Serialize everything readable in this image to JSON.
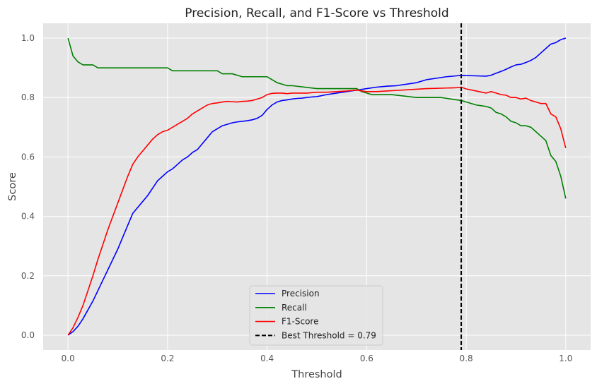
{
  "chart_data": {
    "type": "line",
    "title": "Precision, Recall, and F1-Score vs Threshold",
    "xlabel": "Threshold",
    "ylabel": "Score",
    "xlim": [
      -0.05,
      1.05
    ],
    "ylim": [
      -0.05,
      1.05
    ],
    "xticks": [
      0.0,
      0.2,
      0.4,
      0.6,
      0.8,
      1.0
    ],
    "xtick_labels": [
      "0.0",
      "0.2",
      "0.4",
      "0.6",
      "0.8",
      "1.0"
    ],
    "yticks": [
      0.0,
      0.2,
      0.4,
      0.6,
      0.8,
      1.0
    ],
    "ytick_labels": [
      "0.0",
      "0.2",
      "0.4",
      "0.6",
      "0.8",
      "1.0"
    ],
    "grid": true,
    "legend_position": "lower-center",
    "background": "#e5e5e5",
    "series": [
      {
        "name": "Precision",
        "color": "#0000ff",
        "x": [
          0.0,
          0.01,
          0.02,
          0.03,
          0.04,
          0.05,
          0.06,
          0.07,
          0.08,
          0.09,
          0.1,
          0.11,
          0.12,
          0.13,
          0.14,
          0.15,
          0.16,
          0.17,
          0.18,
          0.19,
          0.2,
          0.21,
          0.22,
          0.23,
          0.24,
          0.25,
          0.26,
          0.27,
          0.28,
          0.29,
          0.3,
          0.31,
          0.32,
          0.33,
          0.34,
          0.35,
          0.36,
          0.37,
          0.38,
          0.39,
          0.4,
          0.41,
          0.42,
          0.43,
          0.44,
          0.45,
          0.46,
          0.47,
          0.48,
          0.49,
          0.5,
          0.52,
          0.54,
          0.56,
          0.58,
          0.6,
          0.62,
          0.64,
          0.66,
          0.68,
          0.7,
          0.72,
          0.74,
          0.76,
          0.78,
          0.79,
          0.8,
          0.82,
          0.84,
          0.85,
          0.86,
          0.87,
          0.88,
          0.89,
          0.9,
          0.91,
          0.92,
          0.93,
          0.94,
          0.95,
          0.96,
          0.97,
          0.98,
          0.99,
          1.0
        ],
        "y": [
          0.0,
          0.012,
          0.03,
          0.055,
          0.085,
          0.115,
          0.15,
          0.185,
          0.22,
          0.255,
          0.29,
          0.33,
          0.37,
          0.41,
          0.43,
          0.45,
          0.47,
          0.495,
          0.52,
          0.535,
          0.55,
          0.56,
          0.575,
          0.59,
          0.6,
          0.615,
          0.625,
          0.645,
          0.665,
          0.685,
          0.695,
          0.705,
          0.71,
          0.715,
          0.718,
          0.72,
          0.722,
          0.725,
          0.73,
          0.74,
          0.76,
          0.775,
          0.785,
          0.79,
          0.792,
          0.795,
          0.797,
          0.798,
          0.8,
          0.802,
          0.803,
          0.81,
          0.815,
          0.82,
          0.825,
          0.83,
          0.835,
          0.838,
          0.84,
          0.845,
          0.85,
          0.86,
          0.865,
          0.87,
          0.873,
          0.875,
          0.874,
          0.873,
          0.872,
          0.875,
          0.882,
          0.888,
          0.895,
          0.903,
          0.91,
          0.912,
          0.918,
          0.925,
          0.935,
          0.95,
          0.965,
          0.98,
          0.985,
          0.995,
          1.0
        ]
      },
      {
        "name": "Recall",
        "color": "#008000",
        "x": [
          0.0,
          0.01,
          0.02,
          0.03,
          0.04,
          0.05,
          0.06,
          0.07,
          0.1,
          0.15,
          0.2,
          0.21,
          0.25,
          0.3,
          0.31,
          0.33,
          0.34,
          0.35,
          0.4,
          0.41,
          0.42,
          0.43,
          0.44,
          0.45,
          0.5,
          0.55,
          0.58,
          0.59,
          0.6,
          0.61,
          0.65,
          0.7,
          0.75,
          0.79,
          0.8,
          0.82,
          0.84,
          0.85,
          0.86,
          0.87,
          0.88,
          0.89,
          0.9,
          0.91,
          0.92,
          0.93,
          0.94,
          0.95,
          0.96,
          0.97,
          0.98,
          0.99,
          1.0
        ],
        "y": [
          1.0,
          0.94,
          0.92,
          0.91,
          0.91,
          0.91,
          0.9,
          0.9,
          0.9,
          0.9,
          0.9,
          0.89,
          0.89,
          0.89,
          0.88,
          0.88,
          0.875,
          0.87,
          0.87,
          0.86,
          0.85,
          0.845,
          0.84,
          0.84,
          0.83,
          0.83,
          0.83,
          0.82,
          0.815,
          0.81,
          0.81,
          0.8,
          0.8,
          0.79,
          0.785,
          0.775,
          0.77,
          0.765,
          0.75,
          0.745,
          0.735,
          0.72,
          0.715,
          0.705,
          0.705,
          0.7,
          0.685,
          0.67,
          0.655,
          0.605,
          0.585,
          0.535,
          0.46
        ]
      },
      {
        "name": "F1-Score",
        "color": "#ff0000",
        "x": [
          0.0,
          0.01,
          0.02,
          0.03,
          0.04,
          0.05,
          0.06,
          0.07,
          0.08,
          0.09,
          0.1,
          0.11,
          0.12,
          0.13,
          0.14,
          0.15,
          0.16,
          0.17,
          0.18,
          0.19,
          0.2,
          0.21,
          0.22,
          0.23,
          0.24,
          0.25,
          0.26,
          0.27,
          0.28,
          0.29,
          0.3,
          0.31,
          0.32,
          0.33,
          0.34,
          0.35,
          0.36,
          0.37,
          0.38,
          0.39,
          0.4,
          0.41,
          0.42,
          0.43,
          0.44,
          0.45,
          0.46,
          0.48,
          0.5,
          0.52,
          0.54,
          0.56,
          0.58,
          0.6,
          0.62,
          0.64,
          0.66,
          0.68,
          0.7,
          0.72,
          0.74,
          0.76,
          0.78,
          0.79,
          0.8,
          0.82,
          0.84,
          0.85,
          0.86,
          0.87,
          0.88,
          0.89,
          0.9,
          0.91,
          0.92,
          0.93,
          0.94,
          0.95,
          0.96,
          0.97,
          0.98,
          0.99,
          1.0
        ],
        "y": [
          0.0,
          0.025,
          0.06,
          0.1,
          0.15,
          0.2,
          0.255,
          0.305,
          0.355,
          0.4,
          0.445,
          0.49,
          0.535,
          0.575,
          0.6,
          0.62,
          0.64,
          0.66,
          0.675,
          0.685,
          0.69,
          0.7,
          0.71,
          0.72,
          0.73,
          0.745,
          0.755,
          0.765,
          0.775,
          0.78,
          0.782,
          0.785,
          0.787,
          0.786,
          0.785,
          0.787,
          0.788,
          0.79,
          0.795,
          0.8,
          0.81,
          0.814,
          0.815,
          0.815,
          0.813,
          0.815,
          0.815,
          0.815,
          0.818,
          0.818,
          0.82,
          0.822,
          0.825,
          0.82,
          0.82,
          0.822,
          0.824,
          0.826,
          0.828,
          0.83,
          0.831,
          0.832,
          0.833,
          0.835,
          0.829,
          0.822,
          0.815,
          0.82,
          0.815,
          0.81,
          0.808,
          0.8,
          0.8,
          0.795,
          0.798,
          0.79,
          0.785,
          0.78,
          0.78,
          0.745,
          0.735,
          0.695,
          0.63
        ]
      },
      {
        "name": "Best Threshold = 0.79",
        "color": "#000000",
        "style": "dashed",
        "vline_x": 0.79
      }
    ]
  }
}
